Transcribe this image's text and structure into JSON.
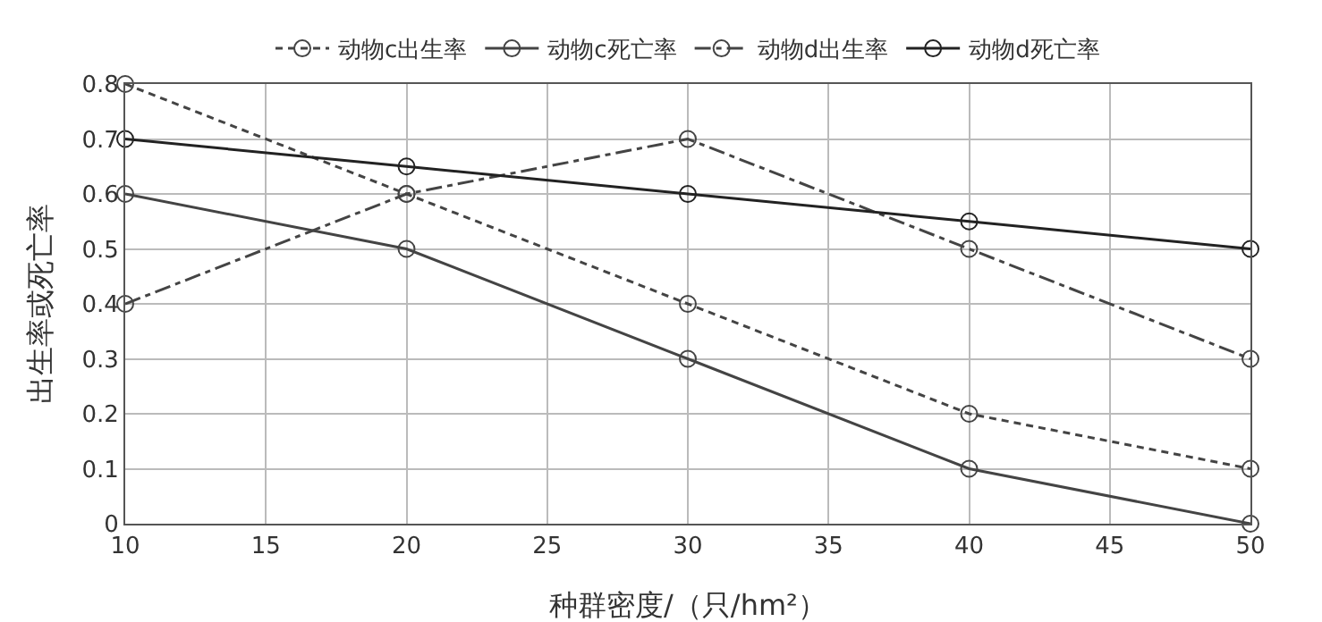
{
  "chart_data": {
    "type": "line",
    "xlabel": "种群密度/（只/hm²）",
    "ylabel": "出生率或死亡率",
    "x": [
      10,
      20,
      30,
      40,
      50
    ],
    "series": [
      {
        "name": "动物c出生率",
        "color": "#444444",
        "line_style": "dotted",
        "values": [
          0.8,
          0.6,
          0.4,
          0.2,
          0.1
        ]
      },
      {
        "name": "动物c死亡率",
        "color": "#444444",
        "line_style": "solid",
        "values": [
          0.6,
          0.5,
          0.3,
          0.1,
          0.0
        ]
      },
      {
        "name": "动物d出生率",
        "color": "#444444",
        "line_style": "dashed",
        "values": [
          0.4,
          0.6,
          0.7,
          0.5,
          0.3
        ]
      },
      {
        "name": "动物d死亡率",
        "color": "#222222",
        "line_style": "solid",
        "values": [
          0.7,
          0.65,
          0.6,
          0.55,
          0.5
        ]
      }
    ],
    "xlim": [
      10,
      50
    ],
    "xticks": [
      10,
      15,
      20,
      25,
      30,
      35,
      40,
      45,
      50
    ],
    "ylim": [
      0,
      0.8
    ],
    "yticks": [
      0,
      0.1,
      0.2,
      0.3,
      0.4,
      0.5,
      0.6,
      0.7,
      0.8
    ],
    "grid": true,
    "legend": "top",
    "marker": "circle"
  }
}
